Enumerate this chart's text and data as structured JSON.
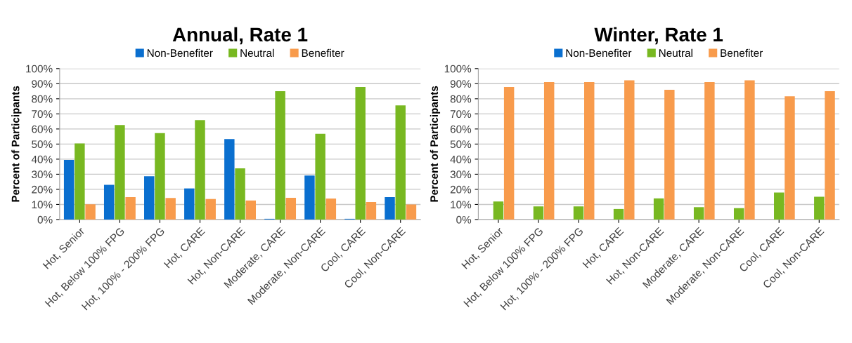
{
  "chart_data": [
    {
      "type": "bar",
      "title": "Annual, Rate 1",
      "ylabel": "Percent of Participants",
      "categories": [
        "Hot, Senior",
        "Hot, Below 100% FPG",
        "Hot, 100% - 200% FPG",
        "Hot, CARE",
        "Hot, Non-CARE",
        "Moderate, CARE",
        "Moderate, Non-CARE",
        "Cool, CARE",
        "Cool, Non-CARE"
      ],
      "series": [
        {
          "name": "Non-Benefiter",
          "color": "#0a6fcf",
          "values": [
            39.5,
            23,
            28.7,
            20.6,
            53.3,
            0.5,
            29.2,
            0.5,
            14.9
          ]
        },
        {
          "name": "Neutral",
          "color": "#78b821",
          "values": [
            50.4,
            62.6,
            57.3,
            65.9,
            33.9,
            85,
            56.8,
            87.8,
            75.6
          ]
        },
        {
          "name": "Benefiter",
          "color": "#f89b4c",
          "values": [
            10.1,
            14.8,
            14.3,
            13.6,
            12.6,
            14.4,
            13.9,
            11.6,
            10.0
          ]
        }
      ],
      "ylim": [
        0,
        100
      ],
      "yticks": [
        {
          "value": 0,
          "label": "0%"
        },
        {
          "value": 10,
          "label": "10%"
        },
        {
          "value": 20,
          "label": "20%"
        },
        {
          "value": 30,
          "label": "30%"
        },
        {
          "value": 40,
          "label": "40%"
        },
        {
          "value": 50,
          "label": "50%"
        },
        {
          "value": 60,
          "label": "60%"
        },
        {
          "value": 70,
          "label": "70%"
        },
        {
          "value": 80,
          "label": "80%"
        },
        {
          "value": 90,
          "label": "90%"
        },
        {
          "value": 100,
          "label": "100%"
        }
      ],
      "grid": "y",
      "legend": "top"
    },
    {
      "type": "bar",
      "title": "Winter, Rate 1",
      "ylabel": "Percent of Participants",
      "categories": [
        "Hot, Senior",
        "Hot, Below 100% FPG",
        "Hot, 100% - 200% FPG",
        "Hot, CARE",
        "Hot, Non-CARE",
        "Moderate, CARE",
        "Moderate, Non-CARE",
        "Cool, CARE",
        "Cool, Non-CARE"
      ],
      "series": [
        {
          "name": "Non-Benefiter",
          "color": "#0a6fcf",
          "values": [
            0,
            0,
            0,
            0,
            0,
            0,
            0,
            0,
            0
          ]
        },
        {
          "name": "Neutral",
          "color": "#78b821",
          "values": [
            12,
            8.7,
            8.7,
            7,
            14,
            8.2,
            7.5,
            17.9,
            15.1
          ]
        },
        {
          "name": "Benefiter",
          "color": "#f89b4c",
          "values": [
            87.8,
            91.1,
            91.1,
            92.2,
            86,
            91.1,
            92.2,
            81.7,
            85
          ]
        }
      ],
      "ylim": [
        0,
        100
      ],
      "yticks": [
        {
          "value": 0,
          "label": "0%"
        },
        {
          "value": 10,
          "label": "10%"
        },
        {
          "value": 20,
          "label": "20%"
        },
        {
          "value": 30,
          "label": "30%"
        },
        {
          "value": 40,
          "label": "40%"
        },
        {
          "value": 50,
          "label": "50%"
        },
        {
          "value": 60,
          "label": "60%"
        },
        {
          "value": 70,
          "label": "70%"
        },
        {
          "value": 80,
          "label": "80%"
        },
        {
          "value": 90,
          "label": "90%"
        },
        {
          "value": 100,
          "label": "100%"
        }
      ],
      "grid": "y",
      "legend": "top"
    }
  ]
}
